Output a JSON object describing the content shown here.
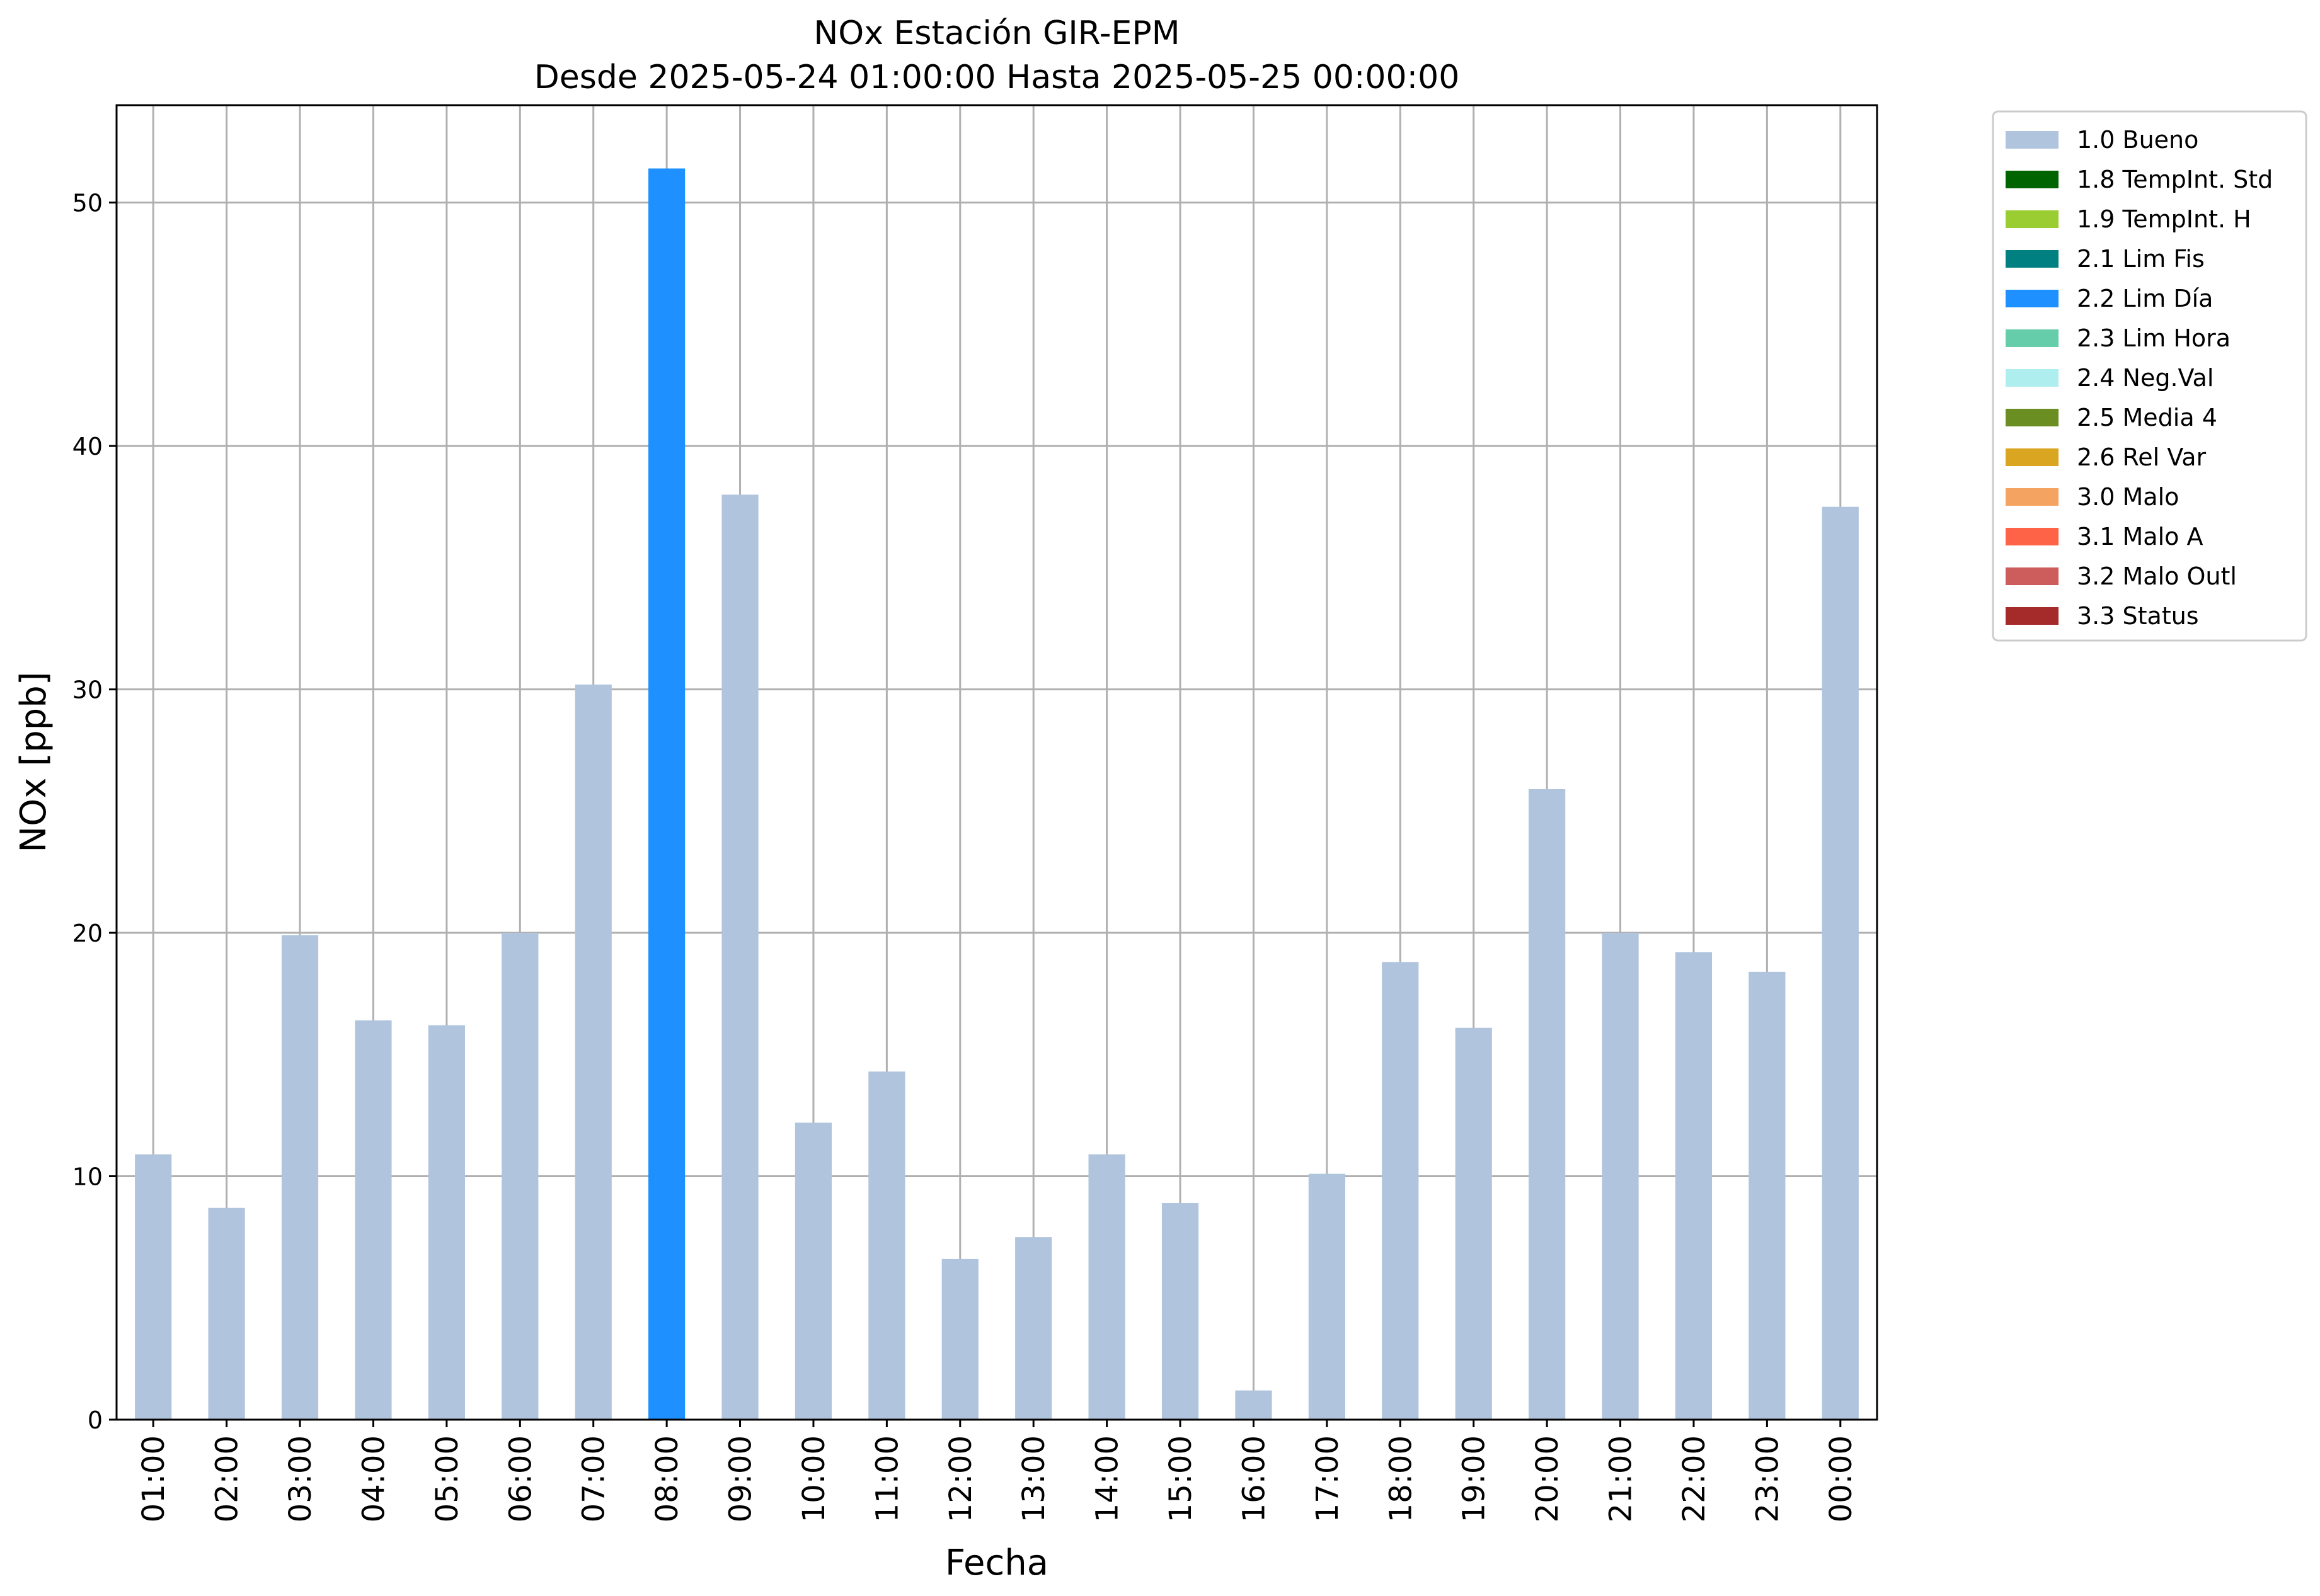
{
  "chart_data": {
    "type": "bar",
    "title": "NOx Estación GIR-EPM",
    "subtitle": "Desde 2025-05-24 01:00:00 Hasta 2025-05-25 00:00:00",
    "xlabel": "Fecha",
    "ylabel": "NOx [ppb]",
    "ylim": [
      0,
      54
    ],
    "yticks": [
      0,
      10,
      20,
      30,
      40,
      50
    ],
    "grid": true,
    "legend_position": "outside-top-right",
    "categories": [
      "01:00",
      "02:00",
      "03:00",
      "04:00",
      "05:00",
      "06:00",
      "07:00",
      "08:00",
      "09:00",
      "10:00",
      "11:00",
      "12:00",
      "13:00",
      "14:00",
      "15:00",
      "16:00",
      "17:00",
      "18:00",
      "19:00",
      "20:00",
      "21:00",
      "22:00",
      "23:00",
      "00:00"
    ],
    "values": [
      10.9,
      8.7,
      19.9,
      16.4,
      16.2,
      20.0,
      30.2,
      51.4,
      38.0,
      12.2,
      14.3,
      6.6,
      7.5,
      10.9,
      8.9,
      1.2,
      10.1,
      18.8,
      16.1,
      25.9,
      20.0,
      19.2,
      18.4,
      37.5
    ],
    "bar_flags": [
      "1.0 Bueno",
      "1.0 Bueno",
      "1.0 Bueno",
      "1.0 Bueno",
      "1.0 Bueno",
      "1.0 Bueno",
      "1.0 Bueno",
      "2.2 Lim Día",
      "1.0 Bueno",
      "1.0 Bueno",
      "1.0 Bueno",
      "1.0 Bueno",
      "1.0 Bueno",
      "1.0 Bueno",
      "1.0 Bueno",
      "1.0 Bueno",
      "1.0 Bueno",
      "1.0 Bueno",
      "1.0 Bueno",
      "1.0 Bueno",
      "1.0 Bueno",
      "1.0 Bueno",
      "1.0 Bueno",
      "1.0 Bueno"
    ],
    "legend": [
      {
        "label": "1.0 Bueno",
        "color": "#b0c4de"
      },
      {
        "label": "1.8 TempInt. Std",
        "color": "#006400"
      },
      {
        "label": "1.9 TempInt. H",
        "color": "#9acd32"
      },
      {
        "label": "2.1 Lim Fis",
        "color": "#008080"
      },
      {
        "label": "2.2 Lim Día",
        "color": "#1e90ff"
      },
      {
        "label": "2.3 Lim Hora",
        "color": "#66cdaa"
      },
      {
        "label": "2.4 Neg.Val",
        "color": "#afeeee"
      },
      {
        "label": "2.5 Media 4",
        "color": "#6b8e23"
      },
      {
        "label": "2.6 Rel Var",
        "color": "#daa520"
      },
      {
        "label": "3.0 Malo",
        "color": "#f4a460"
      },
      {
        "label": "3.1 Malo A",
        "color": "#ff6347"
      },
      {
        "label": "3.2 Malo Outl",
        "color": "#cd5c5c"
      },
      {
        "label": "3.3 Status",
        "color": "#a52a2a"
      }
    ]
  }
}
